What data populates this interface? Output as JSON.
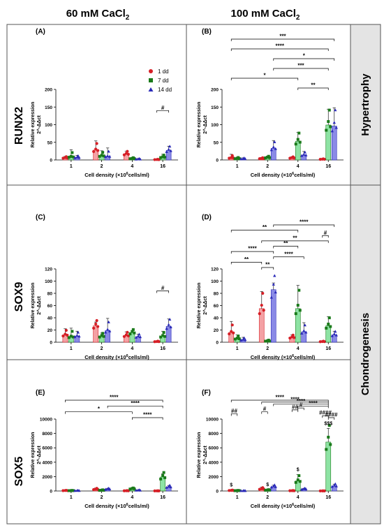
{
  "figure": {
    "col_headers": [
      {
        "text": "60 mM CaCl",
        "sub": "2"
      },
      {
        "text": "100 mM CaCl",
        "sub": "2"
      }
    ],
    "row_labels": [
      "RUNX2",
      "SOX9",
      "SOX5"
    ],
    "side_labels": [
      "Hypertrophy",
      "Chondrogenesis"
    ],
    "legend": [
      "1 dd",
      "7 dd",
      "14 dd"
    ],
    "series_colors": [
      "#d61f26",
      "#1a7a1a",
      "#2a2ab8"
    ],
    "xlabel": {
      "text": "Cell density (×10",
      "sup": "6",
      "tail": "cells/ml)"
    },
    "ylabel": [
      "Relative expression",
      "2^-ΔΔct"
    ]
  },
  "chart_data": [
    {
      "panel": "(A)",
      "type": "bar",
      "gene": "RUNX2",
      "condition": "60 mM CaCl2",
      "categories": [
        "1",
        "2",
        "4",
        "16"
      ],
      "ylim": [
        0,
        200
      ],
      "yticks": [
        0,
        50,
        100,
        150,
        200
      ],
      "series": [
        {
          "name": "1 dd",
          "values": [
            6,
            28,
            17,
            1
          ],
          "err": [
            4,
            26,
            8,
            1
          ]
        },
        {
          "name": "7 dd",
          "values": [
            9,
            12,
            4,
            8
          ],
          "err": [
            20,
            14,
            3,
            8
          ]
        },
        {
          "name": "14 dd",
          "values": [
            7,
            10,
            2,
            27
          ],
          "err": [
            6,
            24,
            2,
            12
          ]
        }
      ],
      "annotations": [
        {
          "text": "#",
          "from": "16:0",
          "to": "16:2"
        }
      ]
    },
    {
      "panel": "(B)",
      "type": "bar",
      "gene": "RUNX2",
      "condition": "100 mM CaCl2",
      "categories": [
        "1",
        "2",
        "4",
        "16"
      ],
      "ylim": [
        0,
        200
      ],
      "yticks": [
        0,
        50,
        100,
        150,
        200
      ],
      "series": [
        {
          "name": "1 dd",
          "values": [
            6,
            4,
            6,
            2
          ],
          "err": [
            10,
            3,
            3,
            1
          ]
        },
        {
          "name": "7 dd",
          "values": [
            4,
            7,
            53,
            99
          ],
          "err": [
            4,
            4,
            25,
            45
          ]
        },
        {
          "name": "14 dd",
          "values": [
            3,
            33,
            14,
            96
          ],
          "err": [
            3,
            22,
            10,
            52
          ]
        }
      ],
      "annotations": [
        {
          "text": "***",
          "from": "1:0",
          "to": "16:2"
        },
        {
          "text": "****",
          "from": "1:0",
          "to": "16:1"
        },
        {
          "text": "*",
          "from": "2:2",
          "to": "16:2"
        },
        {
          "text": "***",
          "from": "2:2",
          "to": "16:1"
        },
        {
          "text": "*",
          "from": "1:0",
          "to": "4:1"
        },
        {
          "text": "**",
          "from": "4:1",
          "to": "16:1"
        }
      ]
    },
    {
      "panel": "(C)",
      "type": "bar",
      "gene": "SOX9",
      "condition": "60 mM CaCl2",
      "categories": [
        "1",
        "2",
        "4",
        "16"
      ],
      "ylim": [
        0,
        120
      ],
      "yticks": [
        0,
        20,
        40,
        60,
        80,
        100,
        120
      ],
      "series": [
        {
          "name": "1 dd",
          "values": [
            12,
            27,
            11,
            1
          ],
          "err": [
            10,
            6,
            6,
            1
          ]
        },
        {
          "name": "7 dd",
          "values": [
            9,
            10,
            16,
            10
          ],
          "err": [
            14,
            5,
            3,
            8
          ]
        },
        {
          "name": "14 dd",
          "values": [
            10,
            19,
            9,
            26
          ],
          "err": [
            8,
            20,
            4,
            12
          ]
        }
      ],
      "annotations": [
        {
          "text": "#",
          "from": "16:0",
          "to": "16:2"
        }
      ]
    },
    {
      "panel": "(D)",
      "type": "bar",
      "gene": "SOX9",
      "condition": "100 mM CaCl2",
      "categories": [
        "1",
        "2",
        "4",
        "16"
      ],
      "ylim": [
        0,
        120
      ],
      "yticks": [
        0,
        20,
        40,
        60,
        80,
        100,
        120
      ],
      "series": [
        {
          "name": "1 dd",
          "values": [
            16,
            55,
            8,
            1
          ],
          "err": [
            18,
            28,
            4,
            1
          ]
        },
        {
          "name": "7 dd",
          "values": [
            6,
            2,
            55,
            27
          ],
          "err": [
            6,
            2,
            38,
            15
          ]
        },
        {
          "name": "14 dd",
          "values": [
            4,
            86,
            17,
            12
          ],
          "err": [
            4,
            11,
            15,
            6
          ]
        }
      ],
      "annotations": [
        {
          "text": "****",
          "from": "2:2",
          "to": "16:2"
        },
        {
          "text": "**",
          "from": "1:0",
          "to": "4:1"
        },
        {
          "text": "#",
          "from": "16:0",
          "to": "16:1"
        },
        {
          "text": "**",
          "from": "2:0",
          "to": "16:1"
        },
        {
          "text": "**",
          "from": "2:2",
          "to": "4:1"
        },
        {
          "text": "****",
          "from": "1:0",
          "to": "2:2"
        },
        {
          "text": "****",
          "from": "2:2",
          "to": "4:2"
        },
        {
          "text": "**",
          "from": "1:0",
          "to": "2:0"
        },
        {
          "text": "**",
          "from": "2:0",
          "to": "2:2"
        }
      ]
    },
    {
      "panel": "(E)",
      "type": "bar",
      "gene": "SOX5",
      "condition": "60 mM CaCl2",
      "categories": [
        "1",
        "2",
        "4",
        "16"
      ],
      "ylim": [
        0,
        10000
      ],
      "yticks": [
        0,
        2000,
        4000,
        6000,
        8000,
        10000
      ],
      "series": [
        {
          "name": "1 dd",
          "values": [
            60,
            230,
            30,
            15
          ],
          "err": [
            40,
            180,
            20,
            10
          ]
        },
        {
          "name": "7 dd",
          "values": [
            50,
            100,
            320,
            1950
          ],
          "err": [
            40,
            80,
            60,
            450
          ]
        },
        {
          "name": "14 dd",
          "values": [
            40,
            260,
            90,
            560
          ],
          "err": [
            30,
            100,
            50,
            200
          ]
        }
      ],
      "annotations": [
        {
          "text": "****",
          "from": "1:0",
          "to": "16:1"
        },
        {
          "text": "****",
          "from": "2:2",
          "to": "16:1"
        },
        {
          "text": "*",
          "from": "1:0",
          "to": "4:1"
        },
        {
          "text": "****",
          "from": "4:1",
          "to": "16:1"
        }
      ]
    },
    {
      "panel": "(F)",
      "type": "bar",
      "gene": "SOX5",
      "condition": "100 mM CaCl2",
      "categories": [
        "1",
        "2",
        "4",
        "16"
      ],
      "ylim": [
        0,
        10000
      ],
      "yticks": [
        0,
        2000,
        4000,
        6000,
        8000,
        10000
      ],
      "series": [
        {
          "name": "1 dd",
          "values": [
            80,
            280,
            40,
            10
          ],
          "err": [
            60,
            250,
            30,
            10
          ]
        },
        {
          "name": "7 dd",
          "values": [
            50,
            120,
            1400,
            6800
          ],
          "err": [
            40,
            80,
            900,
            1900
          ]
        },
        {
          "name": "14 dd",
          "values": [
            20,
            600,
            260,
            700
          ],
          "err": [
            15,
            200,
            100,
            250
          ]
        }
      ],
      "annotations": [
        {
          "text": "****",
          "from": "1:0",
          "to": "16:1"
        },
        {
          "text": "****",
          "from": "2:0",
          "to": "16:1"
        },
        {
          "text": "****",
          "from": "2:2",
          "to": "16:1"
        },
        {
          "text": "****",
          "from": "4:1",
          "to": "16:1"
        },
        {
          "text": "#",
          "from": "4:1",
          "to": "4:2"
        },
        {
          "text": "##",
          "from": "4:0",
          "to": "4:1"
        },
        {
          "text": "#",
          "from": "2:0",
          "to": "2:1"
        },
        {
          "text": "##",
          "from": "1:0",
          "to": "1:1"
        },
        {
          "text": "####",
          "from": "16:0",
          "to": "16:1"
        },
        {
          "text": "####",
          "from": "16:1",
          "to": "16:2"
        }
      ],
      "bar_marks": [
        {
          "text": "$",
          "at": "1:0"
        },
        {
          "text": "$",
          "at": "2:1"
        },
        {
          "text": "$",
          "at": "4:1"
        },
        {
          "text": "$$$",
          "at": "16:1"
        }
      ]
    }
  ]
}
